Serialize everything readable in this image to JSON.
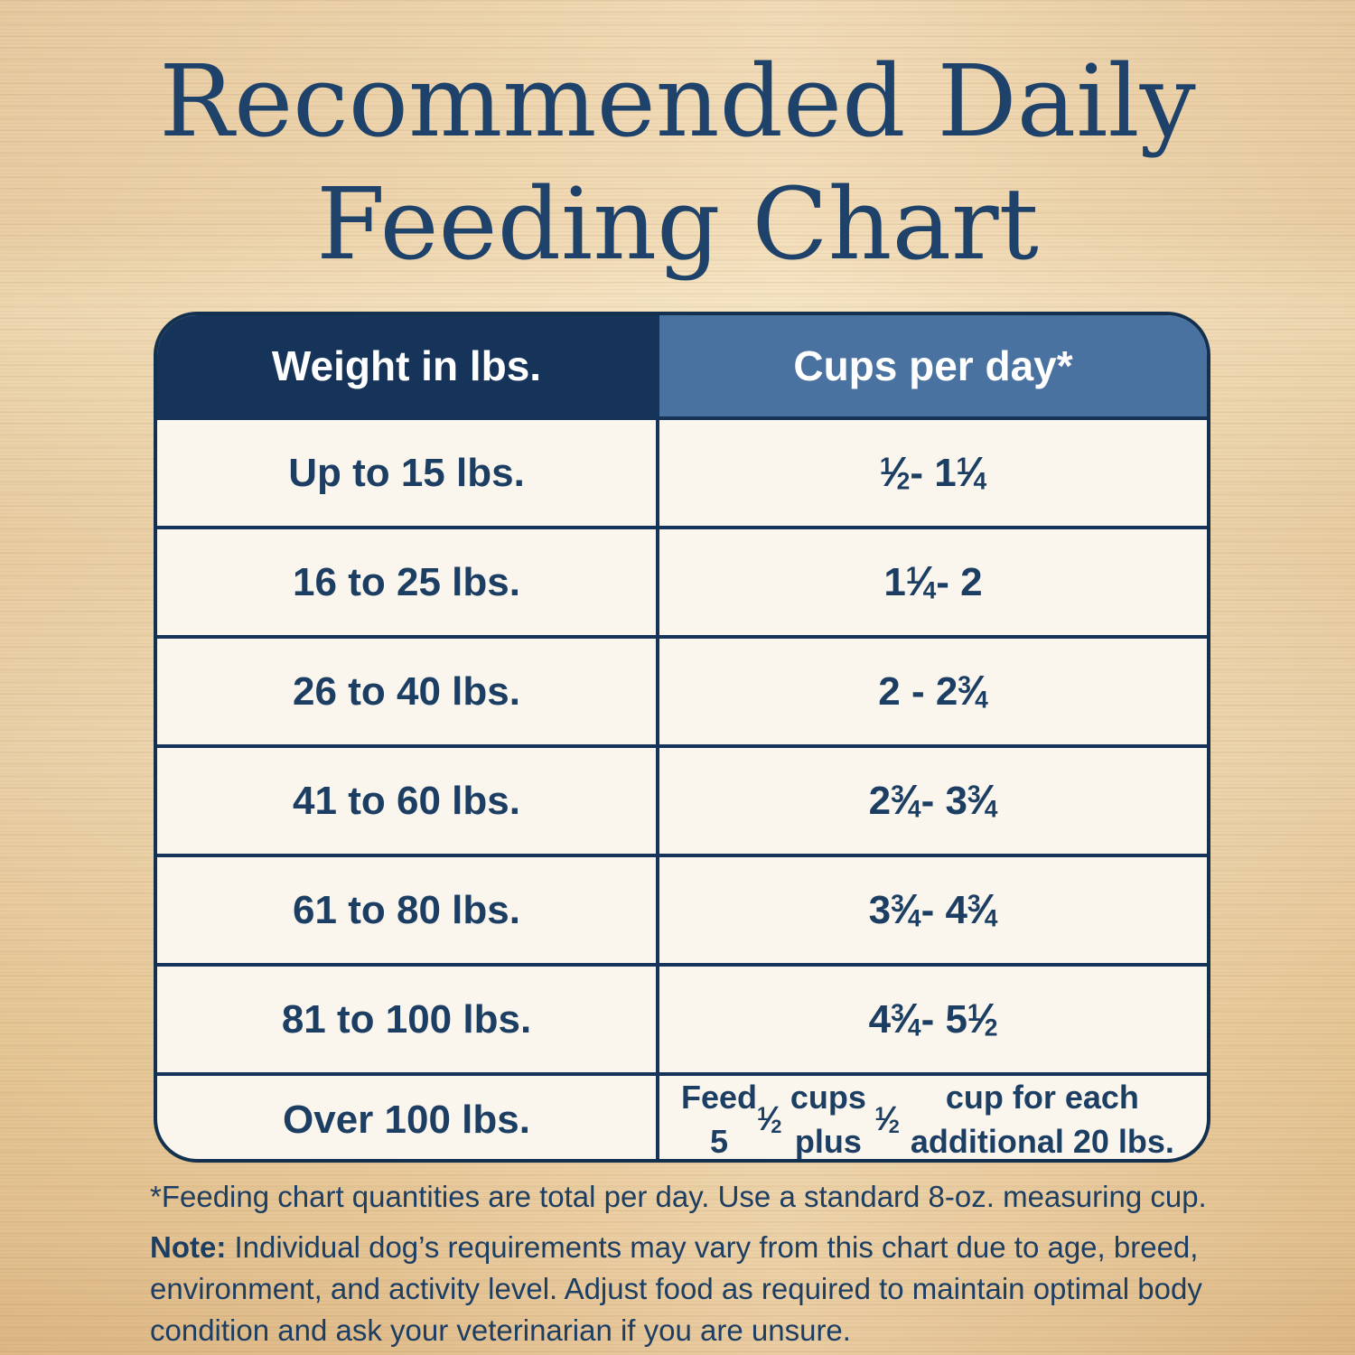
{
  "title": {
    "line1": "Recommended Daily",
    "line2": "Feeding Chart"
  },
  "chart_data": {
    "type": "table",
    "title": "Recommended Daily Feeding Chart",
    "columns": [
      "Weight in lbs.",
      "Cups per day*"
    ],
    "rows": [
      [
        "Up to 15 lbs.",
        "½ - 1 ¼"
      ],
      [
        "16 to 25 lbs.",
        "1 ¼ - 2"
      ],
      [
        "26 to 40 lbs.",
        "2 - 2 ¾"
      ],
      [
        "41 to 60 lbs.",
        "2 ¾ - 3 ¾"
      ],
      [
        "61 to 80 lbs.",
        "3 ¾ - 4 ¾"
      ],
      [
        "81 to 100 lbs.",
        "4 ¾ - 5 ½"
      ],
      [
        "Over 100 lbs.",
        "Feed 5 ½ cups plus ½ cup for each additional 20 lbs."
      ]
    ]
  },
  "footnotes": {
    "asterisk": "*Feeding chart quantities are total per day. Use a standard 8-oz. measuring cup.",
    "note_label": "Note:",
    "note_text": " Individual dog’s requirements may vary from this chart due to age, breed, environment, and activity level. Adjust food as required to maintain optimal body condition and ask your veterinarian if you are unsure."
  },
  "colors": {
    "header_left_bg": "#16345a",
    "header_right_bg": "#4a72a0",
    "cell_bg": "#faf6ee",
    "border_navy": "#14304f",
    "text_navy": "#1d3e63",
    "title_navy": "#1e4269",
    "wood_tan": "#ecd2ab"
  }
}
